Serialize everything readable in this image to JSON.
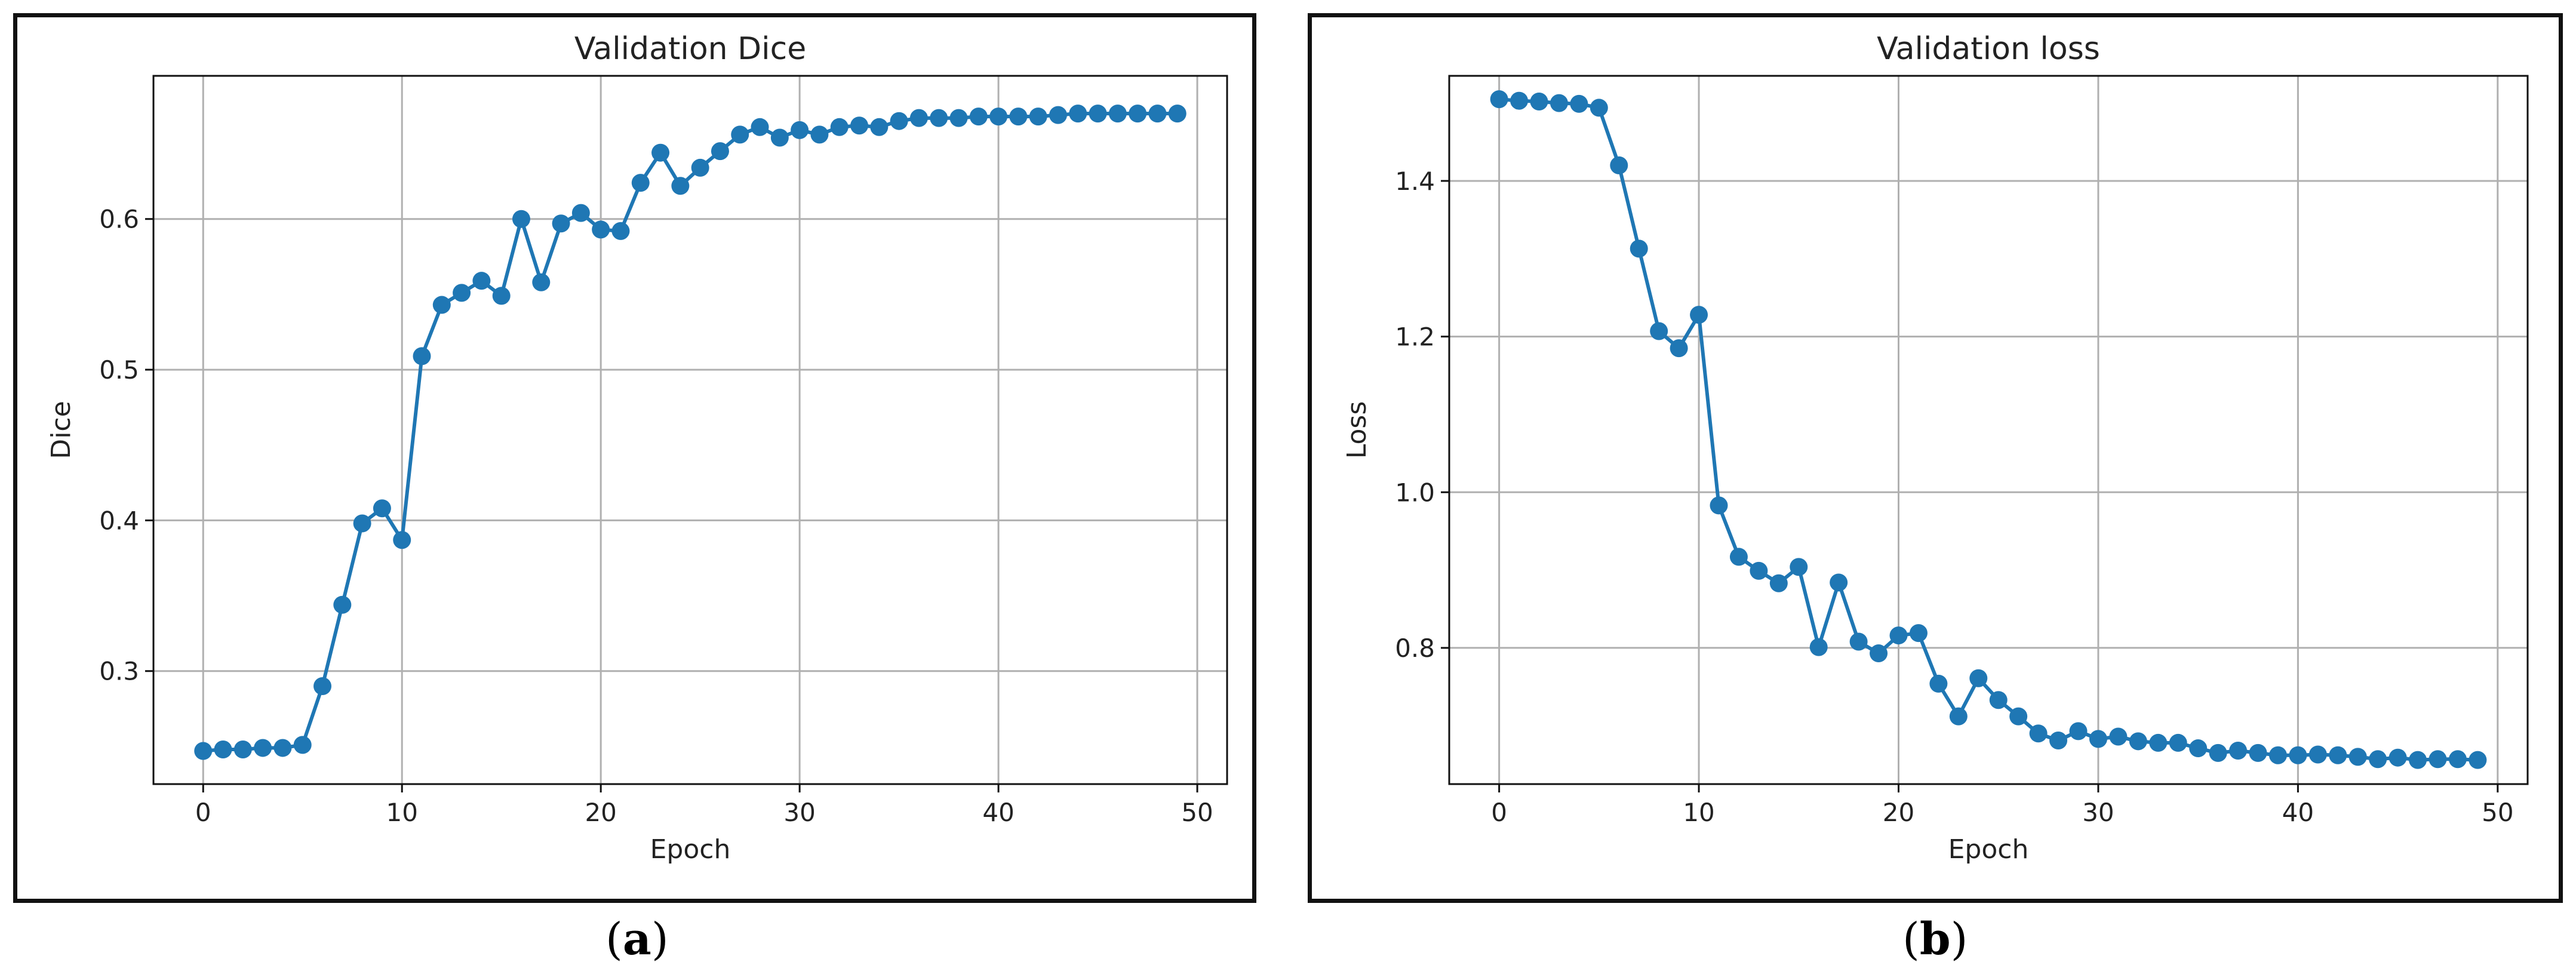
{
  "captions": {
    "a": {
      "open": "(",
      "letter": "a",
      "close": ")"
    },
    "b": {
      "open": "(",
      "letter": "b",
      "close": ")"
    }
  },
  "chart_data": [
    {
      "type": "line",
      "title": "Validation Dice",
      "xlabel": "Epoch",
      "ylabel": "Dice",
      "xlim": [
        -2.5,
        51.5
      ],
      "ylim": [
        0.225,
        0.695
      ],
      "xticks": [
        0,
        10,
        20,
        30,
        40,
        50
      ],
      "yticks": [
        0.3,
        0.4,
        0.5,
        0.6
      ],
      "ytick_labels": [
        "0.3",
        "0.4",
        "0.5",
        "0.6"
      ],
      "grid": true,
      "color": "#1f77b4",
      "marker": "circle",
      "x": [
        0,
        1,
        2,
        3,
        4,
        5,
        6,
        7,
        8,
        9,
        10,
        11,
        12,
        13,
        14,
        15,
        16,
        17,
        18,
        19,
        20,
        21,
        22,
        23,
        24,
        25,
        26,
        27,
        28,
        29,
        30,
        31,
        32,
        33,
        34,
        35,
        36,
        37,
        38,
        39,
        40,
        41,
        42,
        43,
        44,
        45,
        46,
        47,
        48,
        49
      ],
      "y": [
        0.247,
        0.248,
        0.248,
        0.249,
        0.249,
        0.251,
        0.29,
        0.344,
        0.398,
        0.408,
        0.387,
        0.509,
        0.543,
        0.551,
        0.559,
        0.549,
        0.6,
        0.558,
        0.597,
        0.604,
        0.593,
        0.592,
        0.624,
        0.644,
        0.622,
        0.634,
        0.645,
        0.656,
        0.661,
        0.654,
        0.659,
        0.656,
        0.661,
        0.662,
        0.661,
        0.665,
        0.667,
        0.667,
        0.667,
        0.668,
        0.668,
        0.668,
        0.668,
        0.669,
        0.67,
        0.67,
        0.67,
        0.67,
        0.67,
        0.67
      ]
    },
    {
      "type": "line",
      "title": "Validation loss",
      "xlabel": "Epoch",
      "ylabel": "Loss",
      "xlim": [
        -2.5,
        51.5
      ],
      "ylim": [
        0.625,
        1.535
      ],
      "xticks": [
        0,
        10,
        20,
        30,
        40,
        50
      ],
      "yticks": [
        0.8,
        1.0,
        1.2,
        1.4
      ],
      "ytick_labels": [
        "0.8",
        "1.0",
        "1.2",
        "1.4"
      ],
      "grid": true,
      "color": "#1f77b4",
      "marker": "circle",
      "x": [
        0,
        1,
        2,
        3,
        4,
        5,
        6,
        7,
        8,
        9,
        10,
        11,
        12,
        13,
        14,
        15,
        16,
        17,
        18,
        19,
        20,
        21,
        22,
        23,
        24,
        25,
        26,
        27,
        28,
        29,
        30,
        31,
        32,
        33,
        34,
        35,
        36,
        37,
        38,
        39,
        40,
        41,
        42,
        43,
        44,
        45,
        46,
        47,
        48,
        49
      ],
      "y": [
        1.505,
        1.503,
        1.502,
        1.5,
        1.499,
        1.494,
        1.42,
        1.313,
        1.207,
        1.185,
        1.228,
        0.983,
        0.917,
        0.899,
        0.883,
        0.904,
        0.801,
        0.884,
        0.808,
        0.793,
        0.816,
        0.819,
        0.754,
        0.712,
        0.761,
        0.733,
        0.712,
        0.69,
        0.681,
        0.693,
        0.683,
        0.686,
        0.68,
        0.678,
        0.678,
        0.671,
        0.665,
        0.668,
        0.665,
        0.662,
        0.662,
        0.663,
        0.662,
        0.66,
        0.657,
        0.659,
        0.656,
        0.657,
        0.657,
        0.656
      ]
    }
  ]
}
